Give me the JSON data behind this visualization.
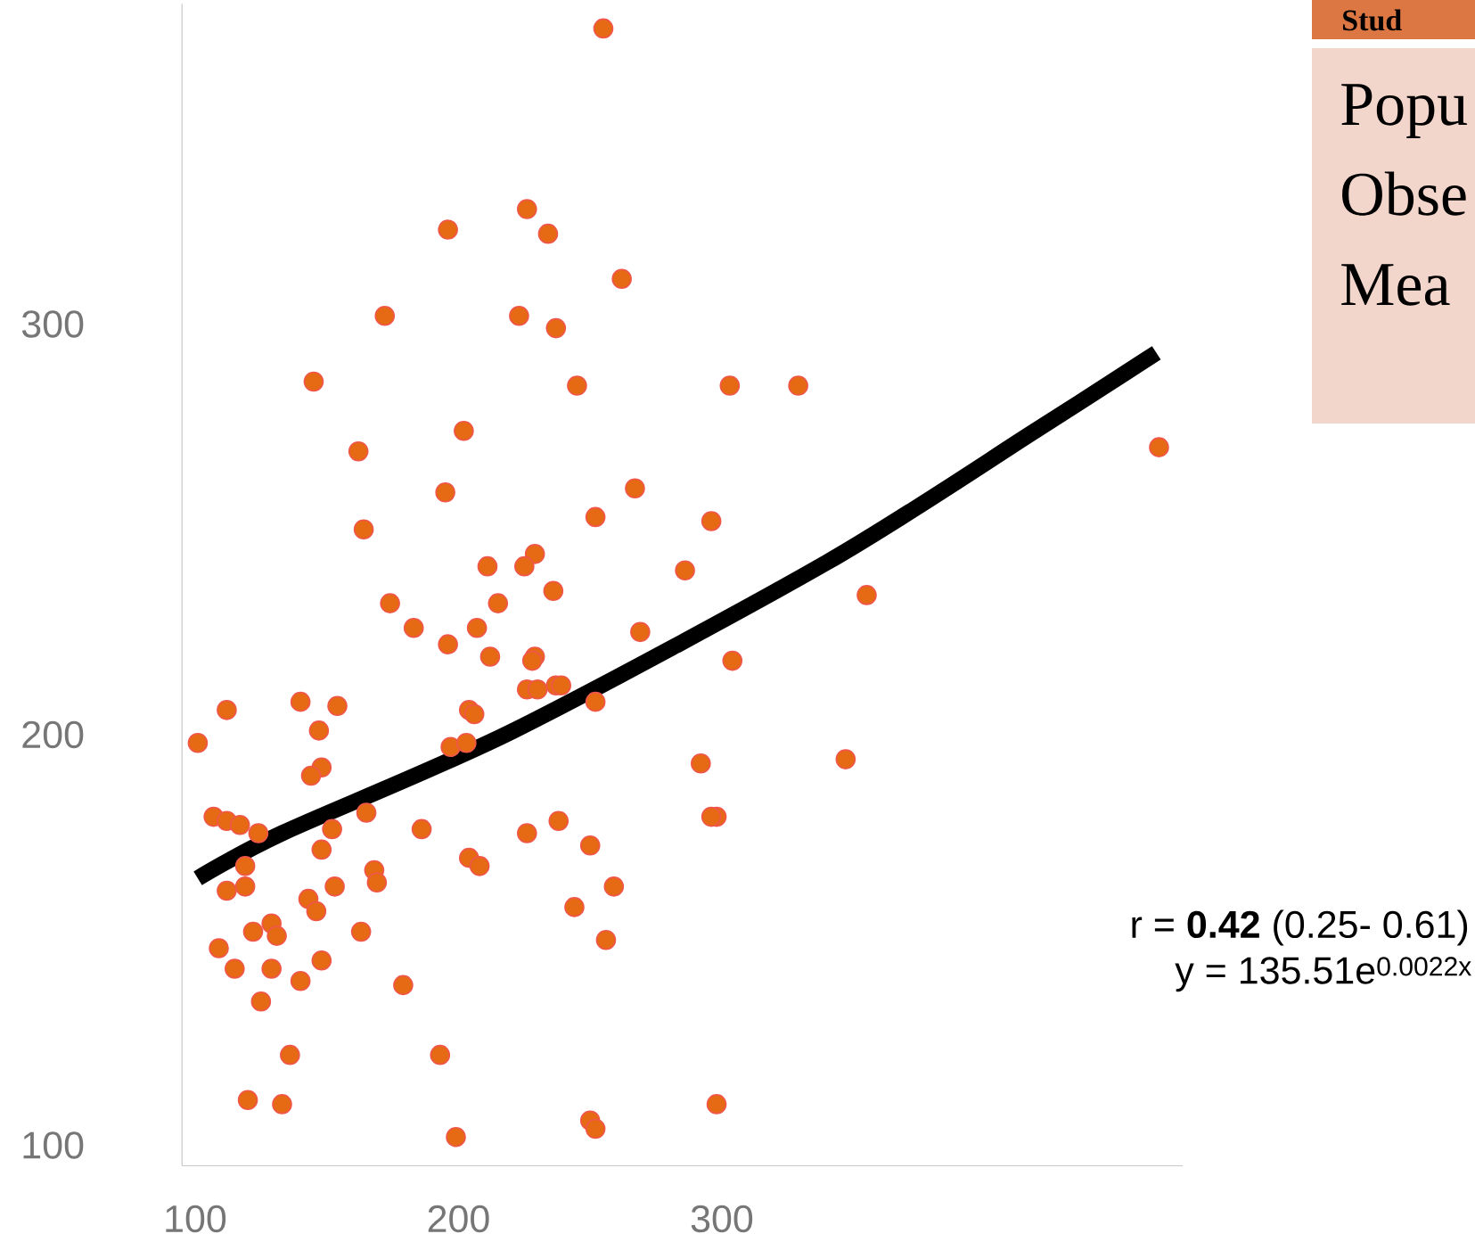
{
  "chart_data": {
    "type": "scatter",
    "xlim": [
      95,
      475
    ],
    "ylim": [
      95,
      378
    ],
    "xticks": [
      100,
      200,
      300
    ],
    "yticks": [
      100,
      200,
      300
    ],
    "marker": "circle",
    "series": [
      {
        "color": "#e66914",
        "x": [
          255,
          226,
          196,
          234,
          262,
          172,
          223,
          237,
          145,
          245,
          202,
          162,
          195,
          252,
          267,
          164,
          229,
          211,
          225,
          236,
          174,
          215,
          183,
          207,
          303,
          329,
          466,
          296,
          286,
          355,
          269,
          304,
          292,
          347,
          298,
          296,
          298,
          196,
          212,
          229,
          228,
          226,
          230,
          237,
          239,
          252,
          112,
          101,
          140,
          154,
          147,
          204,
          206,
          148,
          144,
          197,
          203,
          107,
          112,
          117,
          124,
          165,
          152,
          148,
          119,
          112,
          119,
          186,
          226,
          238,
          250,
          204,
          208,
          168,
          169,
          259,
          153,
          143,
          146,
          244,
          122,
          129,
          131,
          256,
          109,
          163,
          115,
          129,
          148,
          140,
          179,
          125,
          136,
          193,
          120,
          133,
          199,
          250,
          252
        ],
        "values": [
          372,
          328,
          323,
          322,
          311,
          302,
          302,
          299,
          286,
          285,
          274,
          269,
          259,
          253,
          260,
          250,
          244,
          241,
          241,
          235,
          232,
          232,
          226,
          226,
          285,
          285,
          270,
          252,
          240,
          234,
          225,
          218,
          193,
          194,
          180,
          180,
          110,
          222,
          219,
          219,
          218,
          211,
          211,
          212,
          212,
          208,
          206,
          198,
          208,
          207,
          201,
          206,
          205,
          192,
          190,
          197,
          198,
          180,
          179,
          178,
          176,
          181,
          177,
          172,
          168,
          162,
          163,
          177,
          176,
          179,
          173,
          170,
          168,
          167,
          164,
          163,
          163,
          160,
          157,
          158,
          152,
          154,
          151,
          150,
          148,
          152,
          143,
          143,
          145,
          140,
          139,
          135,
          122,
          122,
          111,
          110,
          102,
          106,
          104
        ]
      },
      {
        "type": "line",
        "color": "#000000",
        "marker": "none",
        "x": [
          101,
          133,
          221,
          340,
          419,
          465
        ],
        "values": [
          165,
          176,
          201,
          242,
          274,
          293
        ]
      }
    ],
    "annotations": [
      "r = **0.42** (0.25- 0.61)",
      "y = 135.51e$^{0.0022x}$",
      "Stud",
      "Popu",
      "Obse",
      "Mea"
    ]
  }
}
